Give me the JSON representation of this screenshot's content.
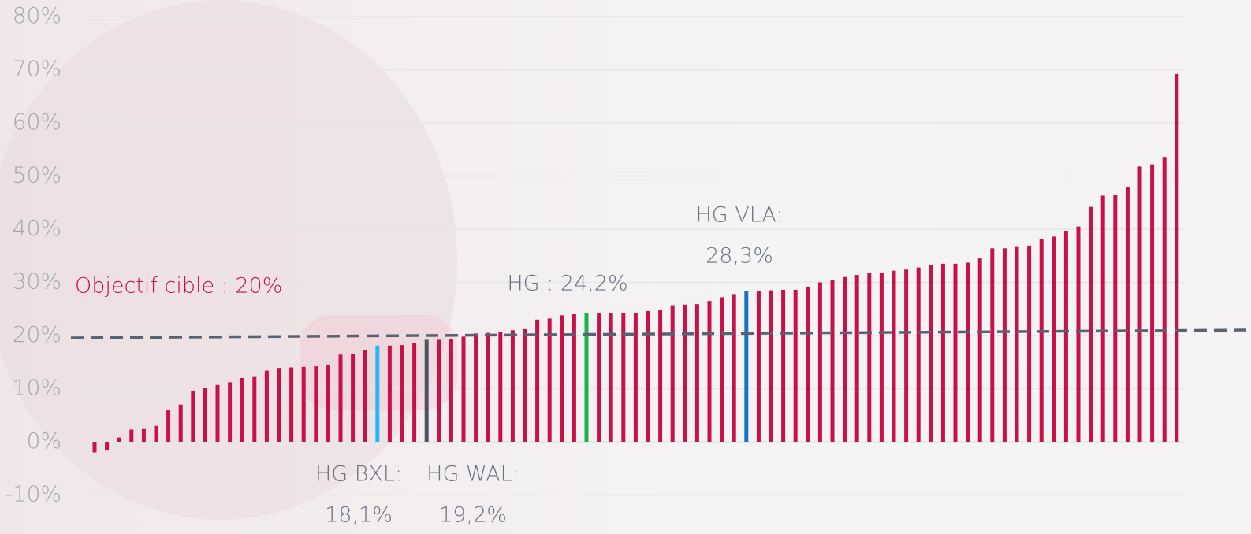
{
  "chart_data": {
    "type": "bar",
    "values": [
      -2,
      -1.5,
      0.8,
      2.3,
      2.4,
      3.0,
      6.0,
      7.0,
      9.6,
      10.2,
      10.7,
      11.2,
      12.0,
      12.2,
      13.4,
      13.9,
      14.0,
      14.1,
      14.2,
      14.4,
      16.4,
      16.6,
      17.2,
      18.1,
      18.1,
      18.2,
      18.6,
      19.2,
      19.2,
      19.4,
      19.8,
      20.4,
      20.5,
      20.6,
      21.0,
      21.2,
      23.0,
      23.2,
      23.8,
      24.0,
      24.2,
      24.2,
      24.2,
      24.2,
      24.2,
      24.6,
      24.9,
      25.7,
      25.8,
      25.9,
      26.5,
      27.2,
      27.8,
      28.3,
      28.3,
      28.5,
      28.6,
      28.6,
      29.2,
      30.0,
      30.5,
      31.0,
      31.4,
      31.8,
      31.8,
      32.2,
      32.4,
      32.8,
      33.3,
      33.5,
      33.5,
      33.7,
      34.5,
      36.4,
      36.4,
      36.8,
      36.9,
      38.1,
      38.6,
      39.7,
      40.5,
      44.2,
      46.3,
      46.4,
      47.9,
      51.8,
      52.2,
      53.6,
      69.2
    ],
    "color": "#c8104a",
    "highlight_colors": {
      "23": "#29b6f6",
      "27": "#4a5563",
      "40": "#19b34a",
      "53": "#1572c8"
    },
    "ylim": [
      -10,
      80
    ],
    "yticks": [
      {
        "value": -10,
        "label": "-10%"
      },
      {
        "value": 0,
        "label": "0%"
      },
      {
        "value": 10,
        "label": "10%"
      },
      {
        "value": 20,
        "label": "20%"
      },
      {
        "value": 30,
        "label": "30%"
      },
      {
        "value": 40,
        "label": "40%"
      },
      {
        "value": 50,
        "label": "50%"
      },
      {
        "value": 60,
        "label": "60%"
      },
      {
        "value": 70,
        "label": "70%"
      },
      {
        "value": 80,
        "label": "80%"
      }
    ],
    "grid": true,
    "target": 20,
    "target_label": "Objectif cible : 20%",
    "annotations": [
      {
        "title": "HG BXL:",
        "text": "18,1%"
      },
      {
        "title": "HG WAL:",
        "text": "19,2%"
      },
      {
        "title": "HG : 24,2%"
      },
      {
        "title": "HG VLA:",
        "text": "28,3%"
      }
    ]
  }
}
